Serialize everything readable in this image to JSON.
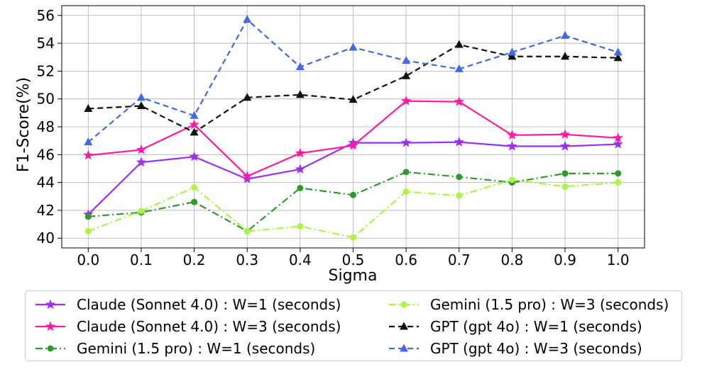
{
  "chart_data": {
    "type": "line",
    "title": "",
    "xlabel": "Sigma",
    "ylabel": "F1-Score(%)",
    "x": [
      0.0,
      0.1,
      0.2,
      0.3,
      0.4,
      0.5,
      0.6,
      0.7,
      0.8,
      0.9,
      1.0
    ],
    "x_tick_labels": [
      "0.0",
      "0.1",
      "0.2",
      "0.3",
      "0.4",
      "0.5",
      "0.6",
      "0.7",
      "0.8",
      "0.9",
      "1.0"
    ],
    "y_ticks": [
      40,
      42,
      44,
      46,
      48,
      50,
      52,
      54,
      56
    ],
    "ylim": [
      39.3,
      56.7
    ],
    "xlim": [
      -0.05,
      1.05
    ],
    "grid": true,
    "legend_position": "bottom",
    "series": [
      {
        "name": "Claude (Sonnet 4.0) : W=1 (seconds)",
        "color": "#9b30f0",
        "dash": "solid",
        "marker": "star",
        "values": [
          41.7,
          45.45,
          45.85,
          44.25,
          44.95,
          46.85,
          46.85,
          46.9,
          46.6,
          46.6,
          46.75
        ]
      },
      {
        "name": "Claude (Sonnet 4.0) : W=3 (seconds)",
        "color": "#ff1aa8",
        "dash": "solid",
        "marker": "star",
        "values": [
          45.95,
          46.35,
          48.15,
          44.45,
          46.1,
          46.65,
          49.85,
          49.8,
          47.4,
          47.45,
          47.2
        ]
      },
      {
        "name": "Gemini (1.5 pro) : W=1 (seconds)",
        "color": "#2e9a2e",
        "dash": "dashdot",
        "marker": "circle",
        "values": [
          41.55,
          41.85,
          42.6,
          40.5,
          43.6,
          43.1,
          44.75,
          44.4,
          44.0,
          44.65,
          44.65
        ]
      },
      {
        "name": "Gemini (1.5 pro) : W=3 (seconds)",
        "color": "#adf542",
        "dash": "dashdot",
        "marker": "circle",
        "values": [
          40.5,
          41.95,
          43.65,
          40.5,
          40.85,
          40.05,
          43.35,
          43.05,
          44.2,
          43.7,
          44.0
        ]
      },
      {
        "name": "GPT (gpt 4o) : W=1 (seconds)",
        "color": "#111111",
        "dash": "dashed",
        "marker": "triangle",
        "values": [
          49.3,
          49.5,
          47.6,
          50.1,
          50.3,
          49.95,
          51.65,
          53.9,
          53.05,
          53.05,
          52.95
        ]
      },
      {
        "name": "GPT (gpt 4o) : W=3 (seconds)",
        "color": "#4169e1",
        "dash": "dashed",
        "marker": "triangle",
        "values": [
          46.9,
          50.1,
          48.8,
          55.7,
          52.3,
          53.7,
          52.75,
          52.15,
          53.35,
          54.55,
          53.35
        ]
      }
    ]
  }
}
